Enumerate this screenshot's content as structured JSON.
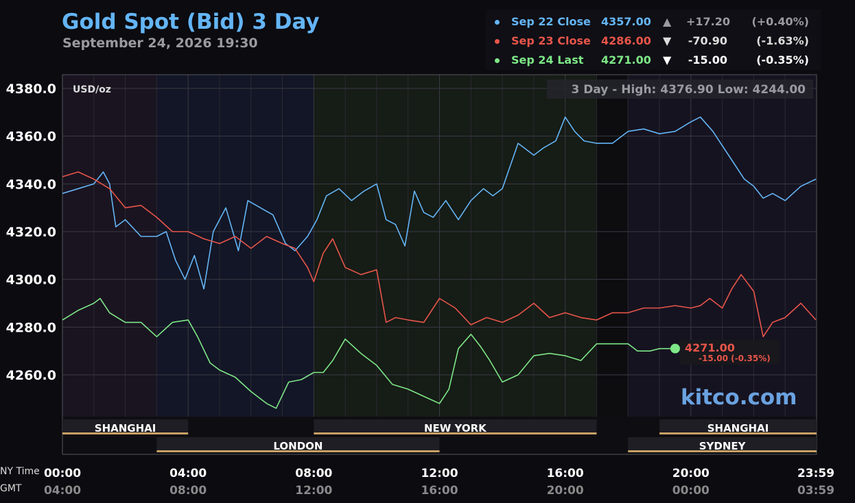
{
  "header": {
    "title": "Gold Spot (Bid) 3 Day",
    "subtitle": "September 24, 2026 19:30"
  },
  "legend": [
    {
      "label": "Sep 22 Close",
      "price": "4357.00",
      "arrow": "▲",
      "change": "+17.20",
      "pct": "(+0.40%)",
      "color": "#64b5f6",
      "arrow_color": "#9a9aa0",
      "change_color": "#9a9aa0"
    },
    {
      "label": "Sep 23 Close",
      "price": "4286.00",
      "arrow": "▼",
      "change": "-70.90",
      "pct": "(-1.63%)",
      "color": "#e8554a",
      "arrow_color": "#dddddd",
      "change_color": "#dddddd"
    },
    {
      "label": "Sep 24 Last",
      "price": "4271.00",
      "arrow": "▼",
      "change": "-15.00",
      "pct": "(-0.35%)",
      "color": "#7ee787",
      "arrow_color": "#ffffff",
      "change_color": "#ffffff"
    }
  ],
  "plot": {
    "unit": "USD/oz",
    "range_text": "3 Day - High: 4376.90  Low: 4244.00",
    "last_label": "4271.00",
    "last_change": "-15.00 (-0.35%)"
  },
  "axis": {
    "nytime_label": "NY Time",
    "gmt_label": "GMT",
    "x_ticks": [
      "00:00",
      "04:00",
      "08:00",
      "12:00",
      "16:00",
      "20:00",
      "23:59"
    ],
    "gmt_ticks": [
      "04:00",
      "08:00",
      "12:00",
      "16:00",
      "20:00",
      "00:00",
      "03:59"
    ],
    "y_ticks": [
      "4380.0",
      "4360.0",
      "4340.0",
      "4320.0",
      "4300.0",
      "4280.0",
      "4260.0"
    ]
  },
  "sessions": {
    "top": [
      {
        "name": "SHANGHAI",
        "start": 0,
        "end": 4
      },
      {
        "name": "NEW YORK",
        "start": 8,
        "end": 17
      },
      {
        "name": "SHANGHAI",
        "start": 19,
        "end": 24
      }
    ],
    "bottom": [
      {
        "name": "LONDON",
        "start": 3,
        "end": 12
      },
      {
        "name": "SYDNEY",
        "start": 18,
        "end": 24
      }
    ]
  },
  "brand": "kitco.com",
  "colors": {
    "series1": "#64b5f6",
    "series2": "#e8554a",
    "series3": "#7ee787",
    "session_bar": "#c8a064",
    "background": "#0b0b10"
  },
  "chart_data": {
    "type": "line",
    "title": "Gold Spot (Bid) 3 Day",
    "ylabel": "USD/oz",
    "xlabel": "NY Time",
    "ylim": [
      4240,
      4385
    ],
    "xlim": [
      0,
      24
    ],
    "grid": true,
    "series": [
      {
        "name": "Sep 22",
        "x": [
          0,
          0.5,
          1,
          1.3,
          1.5,
          1.7,
          2,
          2.5,
          3,
          3.3,
          3.6,
          3.9,
          4.2,
          4.5,
          4.8,
          5.2,
          5.6,
          5.9,
          6.3,
          6.7,
          7.1,
          7.4,
          7.8,
          8.1,
          8.4,
          8.8,
          9.2,
          9.6,
          10,
          10.3,
          10.6,
          10.9,
          11.2,
          11.5,
          11.8,
          12.2,
          12.6,
          13,
          13.4,
          13.7,
          14,
          14.5,
          15,
          15.3,
          15.7,
          16,
          16.3,
          16.6,
          17,
          17.5,
          18,
          18.5,
          19,
          19.5,
          20,
          20.3,
          20.7,
          21,
          21.3,
          21.7,
          22,
          22.3,
          22.6,
          23,
          23.5,
          23.98
        ],
        "values": [
          4336,
          4338,
          4340,
          4345,
          4340,
          4322,
          4325,
          4318,
          4318,
          4320,
          4308,
          4300,
          4310,
          4296,
          4320,
          4330,
          4312,
          4333,
          4330,
          4327,
          4315,
          4312,
          4318,
          4325,
          4335,
          4338,
          4333,
          4337,
          4340,
          4325,
          4323,
          4314,
          4337,
          4328,
          4326,
          4333,
          4325,
          4333,
          4338,
          4335,
          4338,
          4357,
          4352,
          4355,
          4358,
          4368,
          4362,
          4358,
          4357,
          4357,
          4362,
          4363,
          4361,
          4362,
          4366,
          4368,
          4362,
          4356,
          4350,
          4342,
          4339,
          4334,
          4336,
          4333,
          4339,
          4342
        ]
      },
      {
        "name": "Sep 23",
        "x": [
          0,
          0.5,
          1,
          1.5,
          2,
          2.5,
          3,
          3.5,
          4,
          4.5,
          5,
          5.5,
          6,
          6.5,
          7,
          7.4,
          7.8,
          8,
          8.3,
          8.6,
          9,
          9.5,
          10,
          10.3,
          10.6,
          11,
          11.5,
          12,
          12.5,
          13,
          13.5,
          14,
          14.5,
          15,
          15.5,
          16,
          16.5,
          17,
          17.5,
          18,
          18.5,
          19,
          19.5,
          20,
          20.3,
          20.6,
          21,
          21.3,
          21.6,
          22,
          22.3,
          22.6,
          23,
          23.5,
          23.98
        ],
        "values": [
          4343,
          4345,
          4342,
          4338,
          4330,
          4331,
          4326,
          4320,
          4320,
          4317,
          4315,
          4318,
          4313,
          4318,
          4315,
          4313,
          4305,
          4299,
          4311,
          4317,
          4305,
          4302,
          4304,
          4282,
          4284,
          4283,
          4282,
          4292,
          4288,
          4281,
          4284,
          4282,
          4285,
          4290,
          4284,
          4286,
          4284,
          4283,
          4286,
          4286,
          4288,
          4288,
          4289,
          4288,
          4289,
          4292,
          4288,
          4296,
          4302,
          4295,
          4276,
          4282,
          4284,
          4290,
          4283
        ]
      },
      {
        "name": "Sep 24",
        "x": [
          0,
          0.5,
          1,
          1.2,
          1.5,
          2,
          2.5,
          3,
          3.5,
          4,
          4.3,
          4.7,
          5,
          5.5,
          6,
          6.5,
          6.8,
          7.2,
          7.6,
          8,
          8.3,
          8.6,
          9,
          9.5,
          10,
          10.5,
          11,
          11.5,
          12,
          12.3,
          12.6,
          13,
          13.3,
          13.6,
          14,
          14.5,
          15,
          15.5,
          16,
          16.5,
          17,
          17.5,
          18,
          18.3,
          18.7,
          19,
          19.5
        ],
        "values": [
          4283,
          4287,
          4290,
          4292,
          4286,
          4282,
          4282,
          4276,
          4282,
          4283,
          4276,
          4265,
          4262,
          4259,
          4253,
          4248,
          4246,
          4257,
          4258,
          4261,
          4261,
          4266,
          4275,
          4269,
          4264,
          4256,
          4254,
          4251,
          4248,
          4254,
          4271,
          4277,
          4272,
          4266,
          4257,
          4260,
          4268,
          4269,
          4268,
          4266,
          4273,
          4273,
          4273,
          4270,
          4270,
          4271,
          4271
        ]
      }
    ]
  }
}
